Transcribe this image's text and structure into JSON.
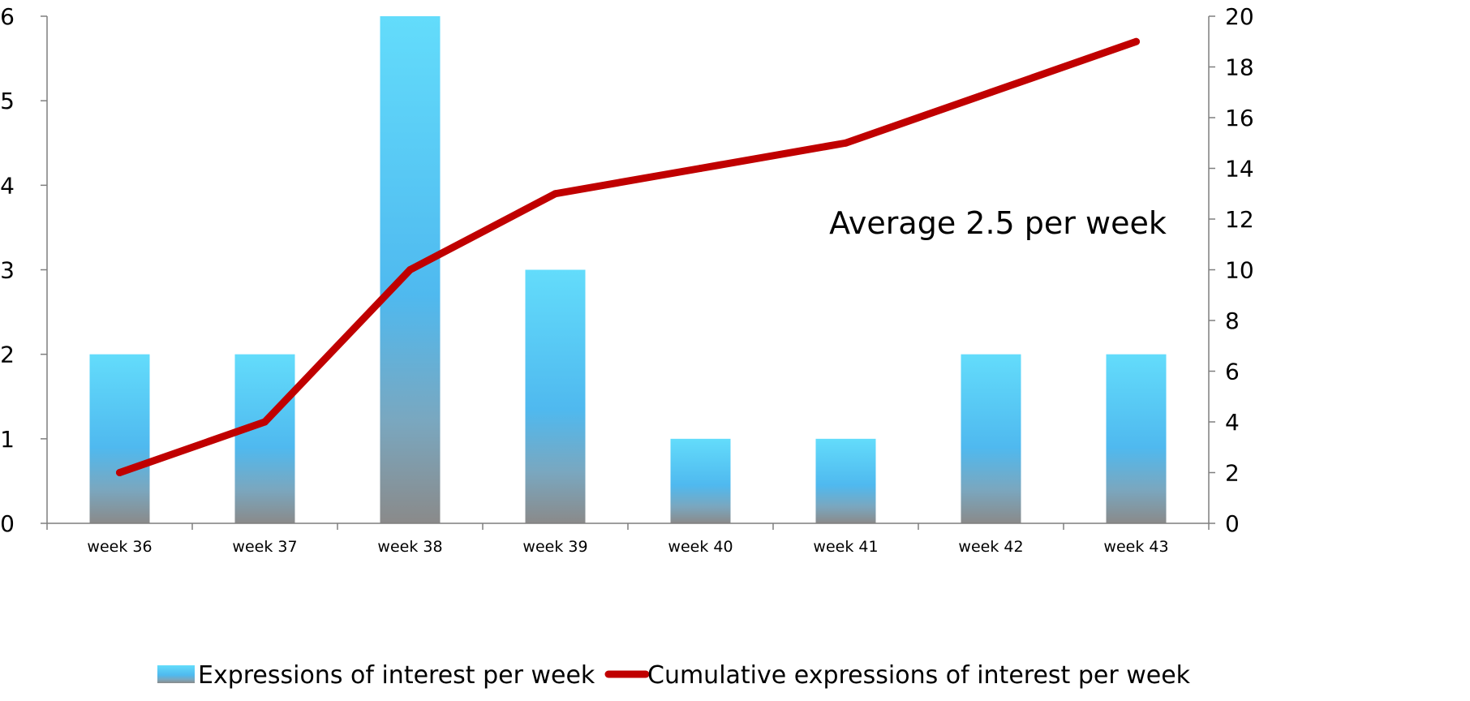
{
  "chart_data": {
    "type": "bar",
    "categories": [
      "week 36",
      "week 37",
      "week 38",
      "week 39",
      "week 40",
      "week 41",
      "week 42",
      "week 43"
    ],
    "series": [
      {
        "name": "Expressions of interest per week",
        "type": "bar",
        "axis": "left",
        "values": [
          2,
          2,
          6,
          3,
          1,
          1,
          2,
          2
        ]
      },
      {
        "name": "Cumulative expressions of interest per week",
        "type": "line",
        "axis": "right",
        "values": [
          2,
          4,
          10,
          13,
          14,
          15,
          17,
          19
        ]
      }
    ],
    "y_left": {
      "range": [
        0,
        6
      ],
      "ticks": [
        "0",
        "1",
        "2",
        "3",
        "4",
        "5",
        "6"
      ]
    },
    "y_right": {
      "range": [
        0,
        20
      ],
      "ticks": [
        "0",
        "2",
        "4",
        "6",
        "8",
        "10",
        "12",
        "14",
        "16",
        "18",
        "20"
      ]
    },
    "annotation": "Average 2.5 per week",
    "grid": false,
    "legend_position": "bottom",
    "colors": {
      "bar_top": "#63dcfb",
      "bar_mid": "#4fb9ef",
      "bar_bottom": "#8a8a8a",
      "line": "#c00000",
      "axis": "#7f7f7f"
    }
  }
}
